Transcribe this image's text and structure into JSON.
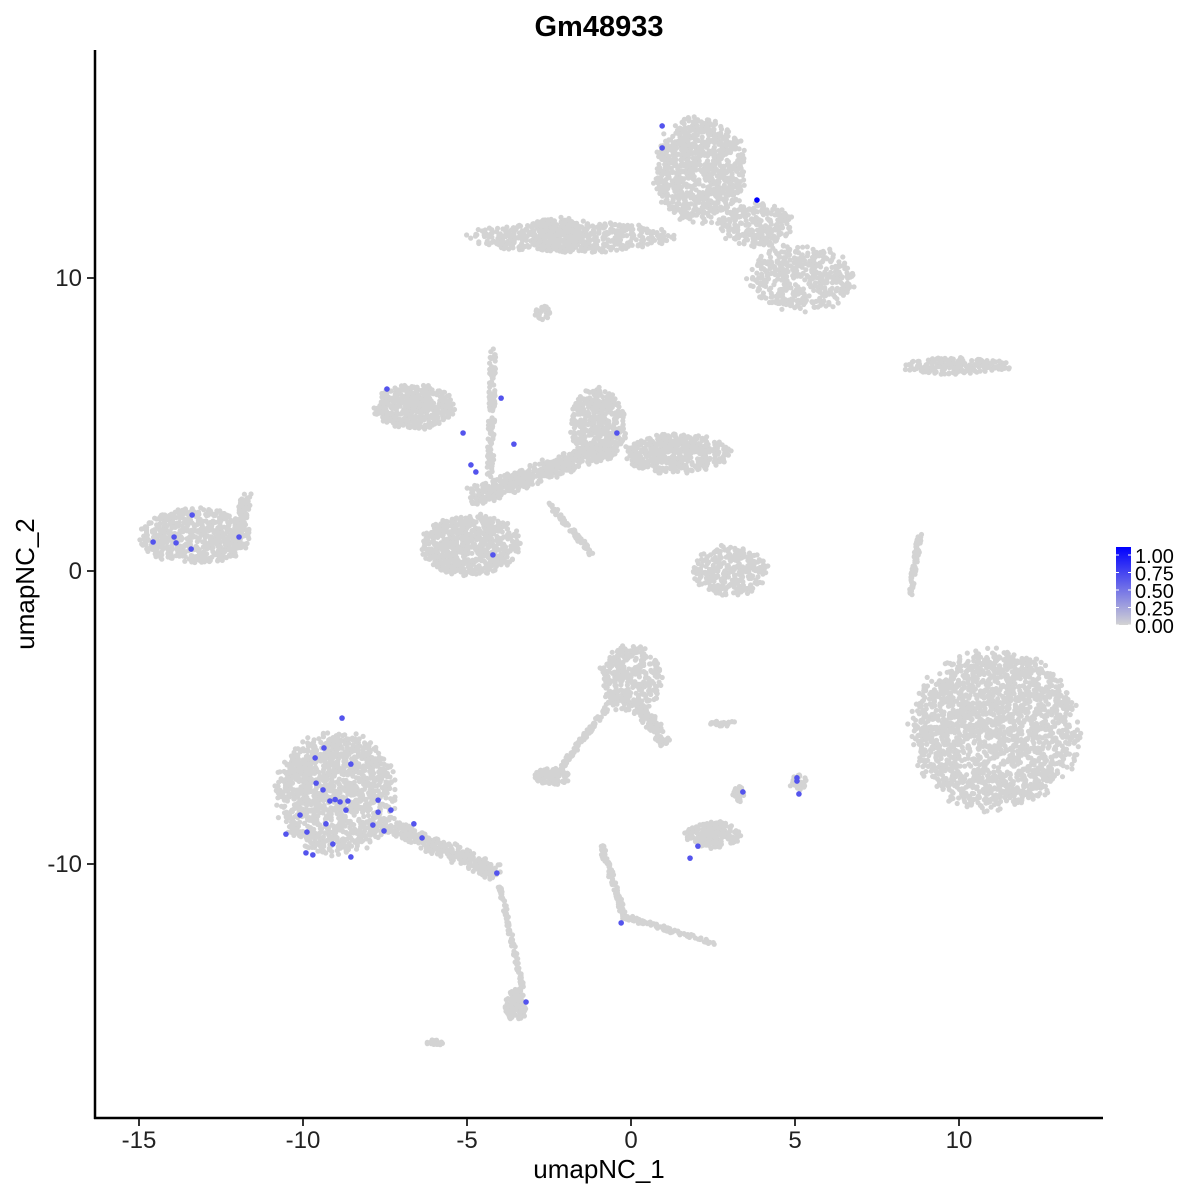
{
  "chart_data": {
    "type": "scatter",
    "title": "Gm48933",
    "xlabel": "umapNC_1",
    "ylabel": "umapNC_2",
    "xlim": [
      -16.3,
      14.4
    ],
    "ylim": [
      -18.7,
      17.8
    ],
    "xticks": [
      -15,
      -10,
      -5,
      0,
      5,
      10
    ],
    "xtick_labels": [
      "-15",
      "-10",
      "-5",
      "0",
      "5",
      "10"
    ],
    "yticks": [
      -10,
      0,
      10
    ],
    "ytick_labels": [
      "-10",
      "0",
      "10"
    ],
    "grid": false,
    "legend": {
      "placement": "right",
      "low_color": "#d3d3d3",
      "high_color": "#0000ff",
      "range": [
        0,
        1
      ],
      "labels": [
        "1.00",
        "0.75",
        "0.50",
        "0.25",
        "0.00"
      ],
      "values": [
        1.0,
        0.75,
        0.5,
        0.25,
        0.0
      ]
    },
    "background_value": 0,
    "background_regions": [
      {
        "shape": "ellipse",
        "cx": 2.1,
        "cy": 13.7,
        "rx": 1.5,
        "ry": 1.9,
        "n": 900
      },
      {
        "shape": "ellipse",
        "cx": -1.8,
        "cy": 11.4,
        "rx": 3.3,
        "ry": 0.55,
        "n": 500
      },
      {
        "shape": "ellipse",
        "cx": -2.3,
        "cy": 11.5,
        "rx": 0.9,
        "ry": 0.6,
        "n": 200
      },
      {
        "shape": "ellipse",
        "cx": 5.2,
        "cy": 10.0,
        "rx": 1.7,
        "ry": 1.2,
        "n": 450
      },
      {
        "shape": "ellipse",
        "cx": 3.8,
        "cy": 11.8,
        "rx": 1.2,
        "ry": 0.8,
        "n": 250
      },
      {
        "shape": "ellipse",
        "cx": 9.9,
        "cy": 7.0,
        "rx": 1.8,
        "ry": 0.3,
        "n": 200
      },
      {
        "shape": "ellipse",
        "cx": -6.6,
        "cy": 5.6,
        "rx": 1.3,
        "ry": 0.8,
        "n": 450
      },
      {
        "shape": "ellipse",
        "cx": -1.0,
        "cy": 5.0,
        "rx": 0.9,
        "ry": 1.3,
        "n": 450
      },
      {
        "shape": "ellipse",
        "cx": 1.4,
        "cy": 4.0,
        "rx": 1.7,
        "ry": 0.7,
        "n": 450
      },
      {
        "shape": "segment",
        "x1": -4.8,
        "y1": 2.5,
        "x2": -0.5,
        "y2": 4.3,
        "w": 0.6,
        "n": 500
      },
      {
        "shape": "segment",
        "x1": -4.2,
        "y1": 7.6,
        "x2": -4.3,
        "y2": 3.2,
        "w": 0.2,
        "n": 120
      },
      {
        "shape": "segment",
        "x1": -2.5,
        "y1": 2.3,
        "x2": -1.2,
        "y2": 0.6,
        "w": 0.15,
        "n": 80
      },
      {
        "shape": "ellipse",
        "cx": -4.9,
        "cy": 0.9,
        "rx": 1.6,
        "ry": 1.1,
        "n": 700
      },
      {
        "shape": "ellipse",
        "cx": -13.3,
        "cy": 1.2,
        "rx": 1.8,
        "ry": 1.0,
        "n": 600
      },
      {
        "shape": "segment",
        "x1": -12.0,
        "y1": 1.2,
        "x2": -11.7,
        "y2": 2.6,
        "w": 0.3,
        "n": 100
      },
      {
        "shape": "ellipse",
        "cx": 3.0,
        "cy": 0.0,
        "rx": 1.2,
        "ry": 0.9,
        "n": 300
      },
      {
        "shape": "segment",
        "x1": 8.8,
        "y1": 1.2,
        "x2": 8.5,
        "y2": -0.8,
        "w": 0.15,
        "n": 80
      },
      {
        "shape": "ellipse",
        "cx": 11.1,
        "cy": -5.4,
        "rx": 2.7,
        "ry": 2.9,
        "n": 2000
      },
      {
        "shape": "ellipse",
        "cx": 0.0,
        "cy": -3.7,
        "rx": 1.0,
        "ry": 1.2,
        "n": 350
      },
      {
        "shape": "segment",
        "x1": 0.2,
        "y1": -4.5,
        "x2": 1.0,
        "y2": -5.8,
        "w": 0.4,
        "n": 120
      },
      {
        "shape": "segment",
        "x1": -0.5,
        "y1": -4.3,
        "x2": -2.2,
        "y2": -6.8,
        "w": 0.15,
        "n": 100
      },
      {
        "shape": "ellipse",
        "cx": -2.4,
        "cy": -7.0,
        "rx": 0.6,
        "ry": 0.3,
        "n": 120
      },
      {
        "shape": "ellipse",
        "cx": -9.0,
        "cy": -7.6,
        "rx": 1.9,
        "ry": 2.2,
        "n": 1300
      },
      {
        "shape": "segment",
        "x1": -7.5,
        "y1": -8.6,
        "x2": -4.1,
        "y2": -10.3,
        "w": 0.5,
        "n": 350
      },
      {
        "shape": "segment",
        "x1": -4.0,
        "y1": -10.8,
        "x2": -3.3,
        "y2": -14.2,
        "w": 0.12,
        "n": 100
      },
      {
        "shape": "ellipse",
        "cx": -3.5,
        "cy": -14.8,
        "rx": 0.35,
        "ry": 0.6,
        "n": 100
      },
      {
        "shape": "ellipse",
        "cx": 2.5,
        "cy": -9.0,
        "rx": 0.9,
        "ry": 0.5,
        "n": 200
      },
      {
        "shape": "segment",
        "x1": -0.9,
        "y1": -9.4,
        "x2": -0.2,
        "y2": -11.8,
        "w": 0.15,
        "n": 100
      },
      {
        "shape": "segment",
        "x1": -0.2,
        "y1": -11.8,
        "x2": 2.5,
        "y2": -12.7,
        "w": 0.15,
        "n": 100
      },
      {
        "shape": "ellipse",
        "cx": 5.1,
        "cy": -7.2,
        "rx": 0.3,
        "ry": 0.3,
        "n": 30
      },
      {
        "shape": "ellipse",
        "cx": 3.3,
        "cy": -7.6,
        "rx": 0.2,
        "ry": 0.3,
        "n": 25
      },
      {
        "shape": "ellipse",
        "cx": -6.0,
        "cy": -16.1,
        "rx": 0.3,
        "ry": 0.1,
        "n": 20
      },
      {
        "shape": "ellipse",
        "cx": -2.7,
        "cy": 8.8,
        "rx": 0.3,
        "ry": 0.25,
        "n": 25
      },
      {
        "shape": "ellipse",
        "cx": 2.8,
        "cy": -5.2,
        "rx": 0.5,
        "ry": 0.1,
        "n": 25
      }
    ],
    "points": [
      {
        "x": 0.95,
        "y": 15.19,
        "value": 0.6
      },
      {
        "x": 0.95,
        "y": 14.44,
        "value": 0.6
      },
      {
        "x": 3.84,
        "y": 12.66,
        "value": 1.0
      },
      {
        "x": -7.44,
        "y": 6.21,
        "value": 0.6
      },
      {
        "x": -3.96,
        "y": 5.9,
        "value": 0.6
      },
      {
        "x": -5.12,
        "y": 4.71,
        "value": 0.6
      },
      {
        "x": -3.57,
        "y": 4.33,
        "value": 0.6
      },
      {
        "x": -0.43,
        "y": 4.71,
        "value": 0.6
      },
      {
        "x": -4.88,
        "y": 3.62,
        "value": 0.6
      },
      {
        "x": -4.73,
        "y": 3.38,
        "value": 0.6
      },
      {
        "x": -4.21,
        "y": 0.55,
        "value": 0.6
      },
      {
        "x": -13.38,
        "y": 1.91,
        "value": 0.6
      },
      {
        "x": -14.57,
        "y": 0.99,
        "value": 0.6
      },
      {
        "x": -13.93,
        "y": 1.16,
        "value": 0.6
      },
      {
        "x": -13.87,
        "y": 0.96,
        "value": 0.6
      },
      {
        "x": -13.41,
        "y": 0.75,
        "value": 0.6
      },
      {
        "x": -11.95,
        "y": 1.16,
        "value": 0.6
      },
      {
        "x": -8.81,
        "y": -5.02,
        "value": 0.6
      },
      {
        "x": -9.36,
        "y": -6.04,
        "value": 0.6
      },
      {
        "x": -9.63,
        "y": -6.38,
        "value": 0.6
      },
      {
        "x": -8.54,
        "y": -6.59,
        "value": 0.6
      },
      {
        "x": -9.6,
        "y": -7.24,
        "value": 0.6
      },
      {
        "x": -9.39,
        "y": -7.47,
        "value": 0.6
      },
      {
        "x": -7.71,
        "y": -7.82,
        "value": 0.6
      },
      {
        "x": -9.18,
        "y": -7.85,
        "value": 0.6
      },
      {
        "x": -9.02,
        "y": -7.8,
        "value": 0.6
      },
      {
        "x": -8.87,
        "y": -7.88,
        "value": 0.6
      },
      {
        "x": -8.63,
        "y": -7.85,
        "value": 0.6
      },
      {
        "x": -8.69,
        "y": -8.16,
        "value": 0.6
      },
      {
        "x": -10.09,
        "y": -8.33,
        "value": 0.6
      },
      {
        "x": -7.71,
        "y": -8.23,
        "value": 0.6
      },
      {
        "x": -7.32,
        "y": -8.16,
        "value": 0.6
      },
      {
        "x": -9.3,
        "y": -8.63,
        "value": 0.6
      },
      {
        "x": -10.52,
        "y": -8.98,
        "value": 0.6
      },
      {
        "x": -9.88,
        "y": -8.91,
        "value": 0.6
      },
      {
        "x": -7.87,
        "y": -8.67,
        "value": 0.6
      },
      {
        "x": -7.53,
        "y": -8.87,
        "value": 0.6
      },
      {
        "x": -6.62,
        "y": -8.63,
        "value": 0.6
      },
      {
        "x": -6.37,
        "y": -9.11,
        "value": 0.6
      },
      {
        "x": -9.09,
        "y": -9.32,
        "value": 0.6
      },
      {
        "x": -9.91,
        "y": -9.62,
        "value": 0.6
      },
      {
        "x": -9.7,
        "y": -9.69,
        "value": 0.6
      },
      {
        "x": -8.54,
        "y": -9.76,
        "value": 0.6
      },
      {
        "x": -4.09,
        "y": -10.31,
        "value": 0.6
      },
      {
        "x": -3.2,
        "y": -14.71,
        "value": 0.6
      },
      {
        "x": -0.3,
        "y": -12.01,
        "value": 0.6
      },
      {
        "x": 1.8,
        "y": -9.8,
        "value": 0.6
      },
      {
        "x": 2.04,
        "y": -9.39,
        "value": 0.6
      },
      {
        "x": 3.41,
        "y": -7.54,
        "value": 0.6
      },
      {
        "x": 5.06,
        "y": -7.06,
        "value": 0.6
      },
      {
        "x": 5.06,
        "y": -7.17,
        "value": 0.6
      },
      {
        "x": 5.12,
        "y": -7.61,
        "value": 0.6
      }
    ]
  }
}
